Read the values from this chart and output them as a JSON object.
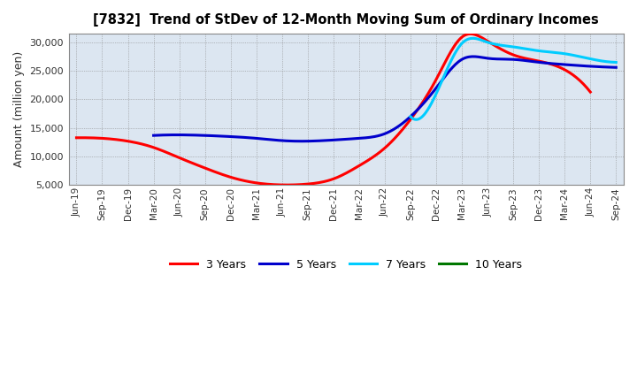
{
  "title": "[7832]  Trend of StDev of 12-Month Moving Sum of Ordinary Incomes",
  "ylabel": "Amount (million yen)",
  "ylim": [
    5000,
    31500
  ],
  "yticks": [
    5000,
    10000,
    15000,
    20000,
    25000,
    30000
  ],
  "background_color": "#dce6f1",
  "plot_bg_color": "#dce6f1",
  "fig_bg_color": "#ffffff",
  "grid_color": "#888888",
  "x_labels": [
    "Jun-19",
    "Sep-19",
    "Dec-19",
    "Mar-20",
    "Jun-20",
    "Sep-20",
    "Dec-20",
    "Mar-21",
    "Jun-21",
    "Sep-21",
    "Dec-21",
    "Mar-22",
    "Jun-22",
    "Sep-22",
    "Dec-22",
    "Mar-23",
    "Jun-23",
    "Sep-23",
    "Dec-23",
    "Mar-24",
    "Jun-24",
    "Sep-24"
  ],
  "series": {
    "3yr": {
      "color": "#ff0000",
      "label": "3 Years",
      "values": [
        13300,
        13200,
        12700,
        11600,
        9800,
        8000,
        6400,
        5400,
        5050,
        5200,
        6100,
        8400,
        11500,
        16500,
        23500,
        30900,
        30200,
        27800,
        26700,
        25200,
        21300,
        null
      ]
    },
    "5yr": {
      "color": "#0000cc",
      "label": "5 Years",
      "values": [
        null,
        null,
        null,
        13700,
        13800,
        13700,
        13500,
        13200,
        12800,
        12700,
        12900,
        13200,
        14000,
        17000,
        22000,
        27000,
        27200,
        27000,
        26500,
        26100,
        25800,
        25600
      ]
    },
    "7yr": {
      "color": "#00ccff",
      "label": "7 Years",
      "values": [
        null,
        null,
        null,
        null,
        null,
        null,
        null,
        null,
        null,
        null,
        null,
        null,
        null,
        17000,
        21000,
        29800,
        30000,
        29200,
        28500,
        28000,
        27100,
        26500
      ]
    },
    "10yr": {
      "color": "#007700",
      "label": "10 Years",
      "values": [
        null,
        null,
        null,
        null,
        null,
        null,
        null,
        null,
        null,
        null,
        null,
        null,
        null,
        null,
        null,
        null,
        null,
        null,
        null,
        null,
        null,
        null
      ]
    }
  }
}
